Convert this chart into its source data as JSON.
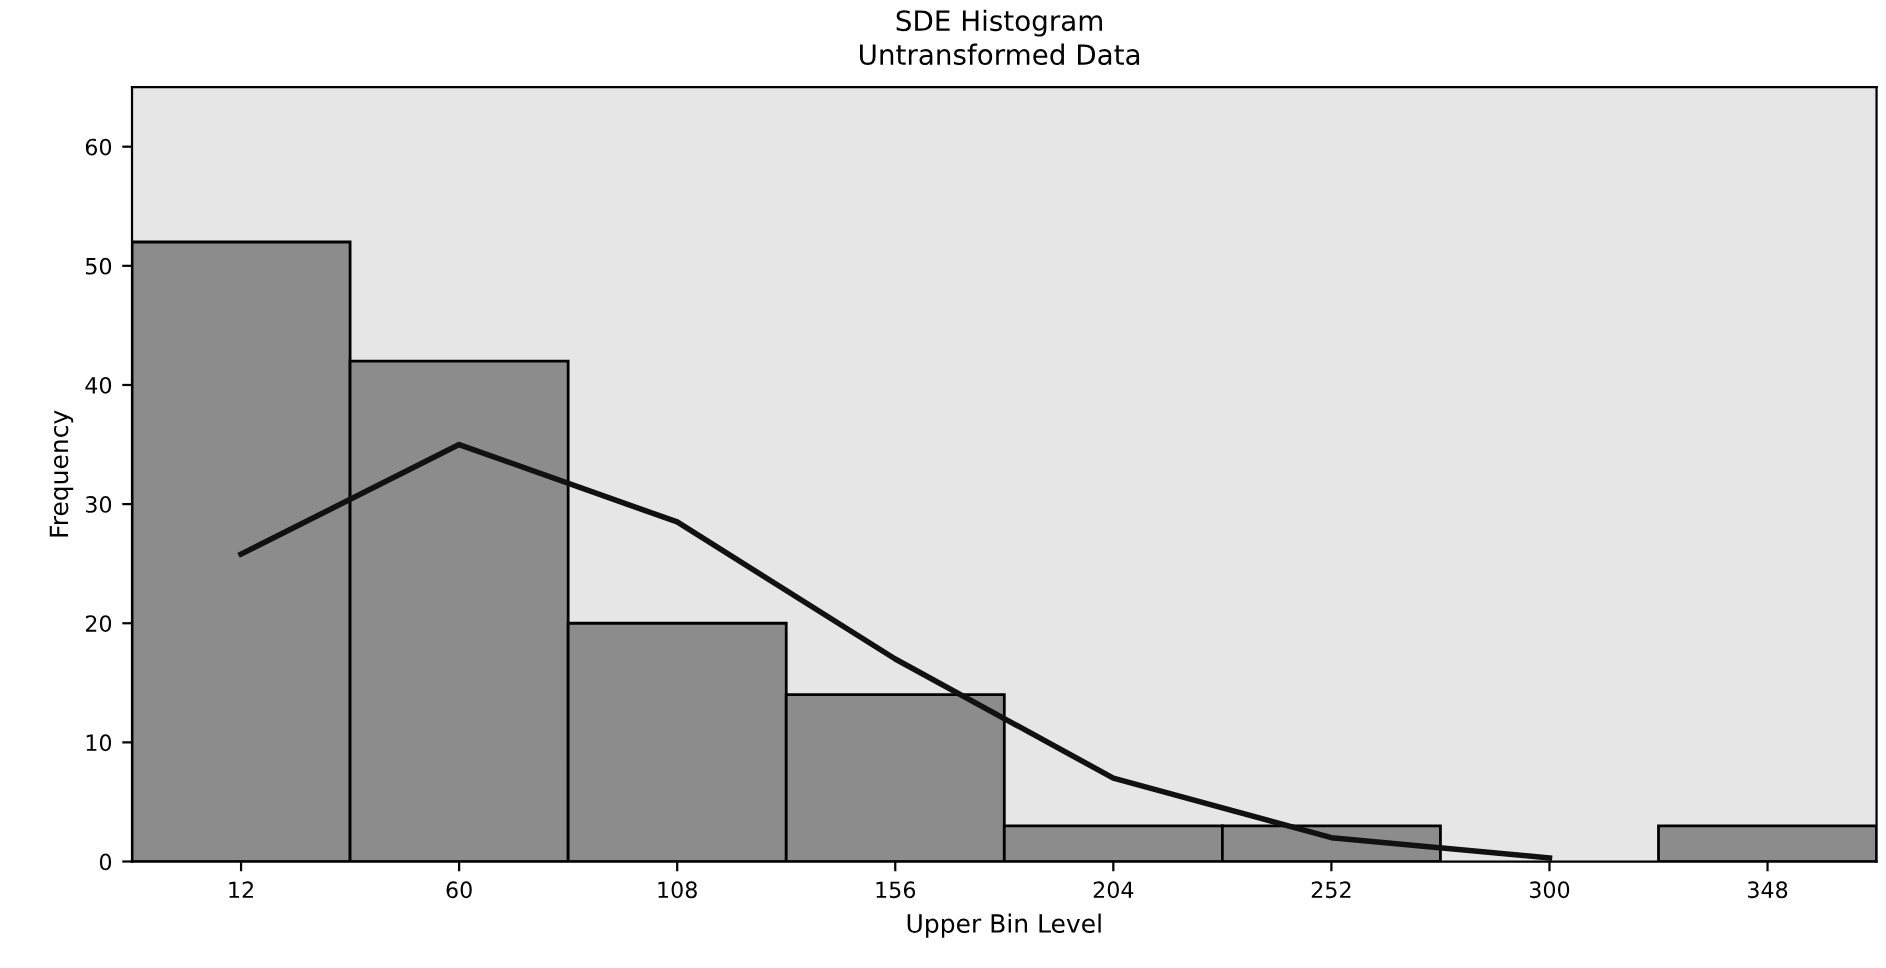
{
  "chart_data": {
    "type": "bar",
    "title": "SDE Histogram",
    "subtitle": "Untransformed Data",
    "xlabel": "Upper Bin Level",
    "ylabel": "Frequency",
    "categories": [
      "12",
      "60",
      "108",
      "156",
      "204",
      "252",
      "300",
      "348"
    ],
    "series": [
      {
        "color": "#8c8c8c",
        "values": [
          52,
          42,
          20,
          14,
          3,
          3,
          0,
          3
        ]
      },
      {
        "type": "line",
        "color": "#111111",
        "values": [
          25.8,
          35,
          28.5,
          17,
          7,
          2,
          0.3,
          null
        ]
      }
    ],
    "ylim": [
      0,
      65
    ],
    "yticks": [
      0,
      10,
      20,
      30,
      40,
      50,
      60
    ],
    "grid": false,
    "legend": false
  }
}
